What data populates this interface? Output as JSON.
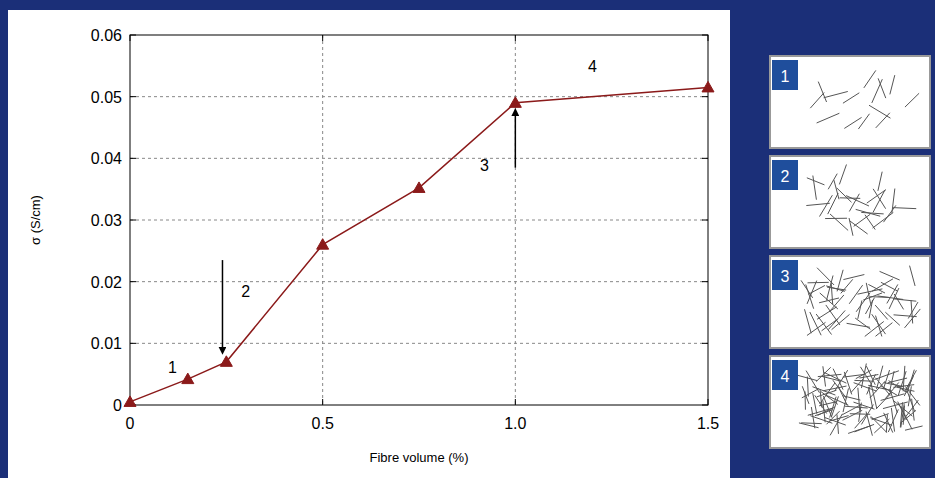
{
  "chart_data": {
    "type": "line",
    "x_label": "Fibre volume (%)",
    "y_label": "σ (S/cm)",
    "x": [
      0,
      0.15,
      0.25,
      0.5,
      0.75,
      1.0,
      1.5
    ],
    "values": [
      0.0005,
      0.0042,
      0.007,
      0.026,
      0.0352,
      0.049,
      0.0515
    ],
    "color": "#8b1a1a",
    "marker": "triangle",
    "xlim": [
      0,
      1.5
    ],
    "ylim": [
      0,
      0.06
    ],
    "xticks": [
      0,
      0.5,
      {
        "value": 1,
        "label": "1.0"
      },
      1.5
    ],
    "yticks": [
      0,
      0.01,
      0.02,
      0.03,
      0.04,
      0.05,
      0.06
    ],
    "grid": true,
    "annotations": [
      {
        "text": "1",
        "x": 0.11,
        "y": 0.0062
      },
      {
        "text": "2",
        "x": 0.3,
        "y": 0.0185
      },
      {
        "text": "3",
        "x": 0.92,
        "y": 0.039
      },
      {
        "text": "4",
        "x": 1.2,
        "y": 0.055
      }
    ],
    "arrows": [
      {
        "x": 0.24,
        "y_from": 0.0235,
        "y_to": 0.0088
      },
      {
        "x": 1.0,
        "y_from": 0.0385,
        "y_to": 0.0475
      }
    ],
    "panels": [
      "1",
      "2",
      "3",
      "4"
    ]
  }
}
